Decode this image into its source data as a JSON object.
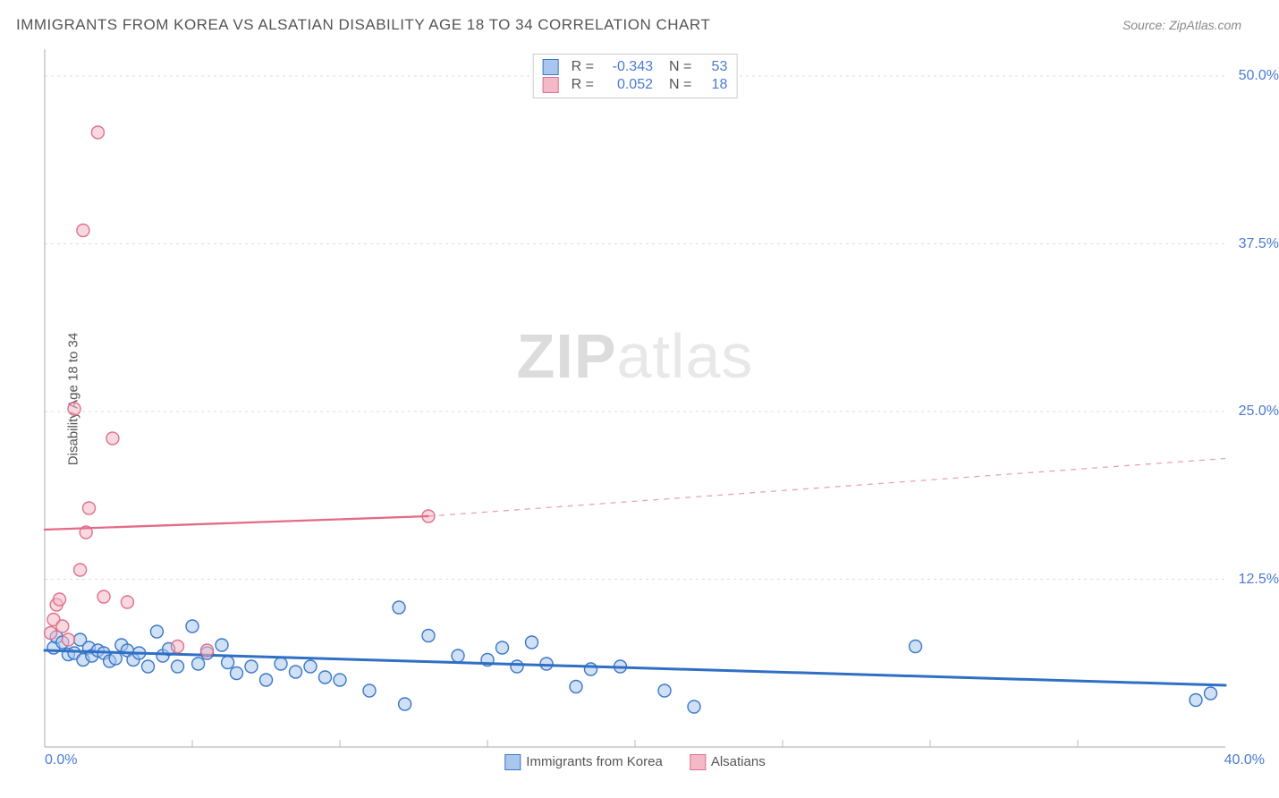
{
  "title": "IMMIGRANTS FROM KOREA VS ALSATIAN DISABILITY AGE 18 TO 34 CORRELATION CHART",
  "source": "Source: ZipAtlas.com",
  "ylabel": "Disability Age 18 to 34",
  "watermark_bold": "ZIP",
  "watermark_light": "atlas",
  "chart": {
    "type": "scatter",
    "xlim": [
      0,
      40
    ],
    "ylim": [
      0,
      52
    ],
    "x_ticks": {
      "min_label": "0.0%",
      "max_label": "40.0%"
    },
    "y_ticks": [
      {
        "v": 12.5,
        "label": "12.5%"
      },
      {
        "v": 25.0,
        "label": "25.0%"
      },
      {
        "v": 37.5,
        "label": "37.5%"
      },
      {
        "v": 50.0,
        "label": "50.0%"
      }
    ],
    "grid_xticks": [
      5,
      10,
      15,
      20,
      25,
      30,
      35
    ],
    "grid_color": "#dddddd",
    "axis_color": "#bbbbbb",
    "background_color": "#ffffff",
    "marker_radius": 7,
    "marker_stroke_width": 1.4,
    "series": [
      {
        "name": "Immigrants from Korea",
        "fill": "#a9c7ec",
        "fill_opacity": 0.55,
        "stroke": "#3a78c9",
        "data": [
          [
            0.3,
            7.4
          ],
          [
            0.4,
            8.2
          ],
          [
            0.6,
            7.8
          ],
          [
            0.8,
            6.9
          ],
          [
            1.0,
            7.0
          ],
          [
            1.2,
            8.0
          ],
          [
            1.3,
            6.5
          ],
          [
            1.5,
            7.4
          ],
          [
            1.6,
            6.8
          ],
          [
            1.8,
            7.2
          ],
          [
            2.0,
            7.0
          ],
          [
            2.2,
            6.4
          ],
          [
            2.4,
            6.6
          ],
          [
            2.6,
            7.6
          ],
          [
            2.8,
            7.2
          ],
          [
            3.0,
            6.5
          ],
          [
            3.2,
            7.0
          ],
          [
            3.5,
            6.0
          ],
          [
            3.8,
            8.6
          ],
          [
            4.0,
            6.8
          ],
          [
            4.2,
            7.3
          ],
          [
            4.5,
            6.0
          ],
          [
            5.0,
            9.0
          ],
          [
            5.2,
            6.2
          ],
          [
            5.5,
            7.0
          ],
          [
            6.0,
            7.6
          ],
          [
            6.2,
            6.3
          ],
          [
            6.5,
            5.5
          ],
          [
            7.0,
            6.0
          ],
          [
            7.5,
            5.0
          ],
          [
            8.0,
            6.2
          ],
          [
            8.5,
            5.6
          ],
          [
            9.0,
            6.0
          ],
          [
            9.5,
            5.2
          ],
          [
            10.0,
            5.0
          ],
          [
            11.0,
            4.2
          ],
          [
            12.0,
            10.4
          ],
          [
            12.2,
            3.2
          ],
          [
            13.0,
            8.3
          ],
          [
            14.0,
            6.8
          ],
          [
            15.0,
            6.5
          ],
          [
            15.5,
            7.4
          ],
          [
            16.0,
            6.0
          ],
          [
            16.5,
            7.8
          ],
          [
            17.0,
            6.2
          ],
          [
            18.0,
            4.5
          ],
          [
            18.5,
            5.8
          ],
          [
            19.5,
            6.0
          ],
          [
            21.0,
            4.2
          ],
          [
            22.0,
            3.0
          ],
          [
            29.5,
            7.5
          ],
          [
            39.0,
            3.5
          ],
          [
            39.5,
            4.0
          ]
        ],
        "trend": {
          "x1": 0,
          "y1": 7.2,
          "x2": 40,
          "y2": 4.6,
          "width": 3,
          "color": "#2f6fc5"
        }
      },
      {
        "name": "Alsatians",
        "fill": "#f4b9c6",
        "fill_opacity": 0.55,
        "stroke": "#e0708d",
        "data": [
          [
            0.2,
            8.5
          ],
          [
            0.3,
            9.5
          ],
          [
            0.4,
            10.6
          ],
          [
            0.5,
            11.0
          ],
          [
            0.6,
            9.0
          ],
          [
            0.8,
            8.0
          ],
          [
            1.0,
            25.2
          ],
          [
            1.2,
            13.2
          ],
          [
            1.3,
            38.5
          ],
          [
            1.4,
            16.0
          ],
          [
            1.5,
            17.8
          ],
          [
            1.8,
            45.8
          ],
          [
            2.0,
            11.2
          ],
          [
            2.3,
            23.0
          ],
          [
            2.8,
            10.8
          ],
          [
            4.5,
            7.5
          ],
          [
            5.5,
            7.2
          ],
          [
            13.0,
            17.2
          ]
        ],
        "trend_solid": {
          "x1": 0,
          "y1": 16.2,
          "x2": 13,
          "y2": 17.2,
          "width": 2.3,
          "color": "#e46a87"
        },
        "trend_dashed": {
          "x1": 13,
          "y1": 17.2,
          "x2": 40,
          "y2": 21.5,
          "width": 1.3,
          "color": "#e9a3b4",
          "dash": "6 6"
        }
      }
    ],
    "stat_legend": [
      {
        "swatch_fill": "#a9c7ec",
        "swatch_stroke": "#3a78c9",
        "R_label": "R =",
        "R": "-0.343",
        "N_label": "N =",
        "N": "53"
      },
      {
        "swatch_fill": "#f4b9c6",
        "swatch_stroke": "#e0708d",
        "R_label": "R =",
        "R": " 0.052",
        "N_label": "N =",
        "N": "18"
      }
    ],
    "bottom_legend": [
      {
        "swatch_fill": "#a9c7ec",
        "swatch_stroke": "#3a78c9",
        "label": "Immigrants from Korea"
      },
      {
        "swatch_fill": "#f4b9c6",
        "swatch_stroke": "#e0708d",
        "label": "Alsatians"
      }
    ]
  }
}
